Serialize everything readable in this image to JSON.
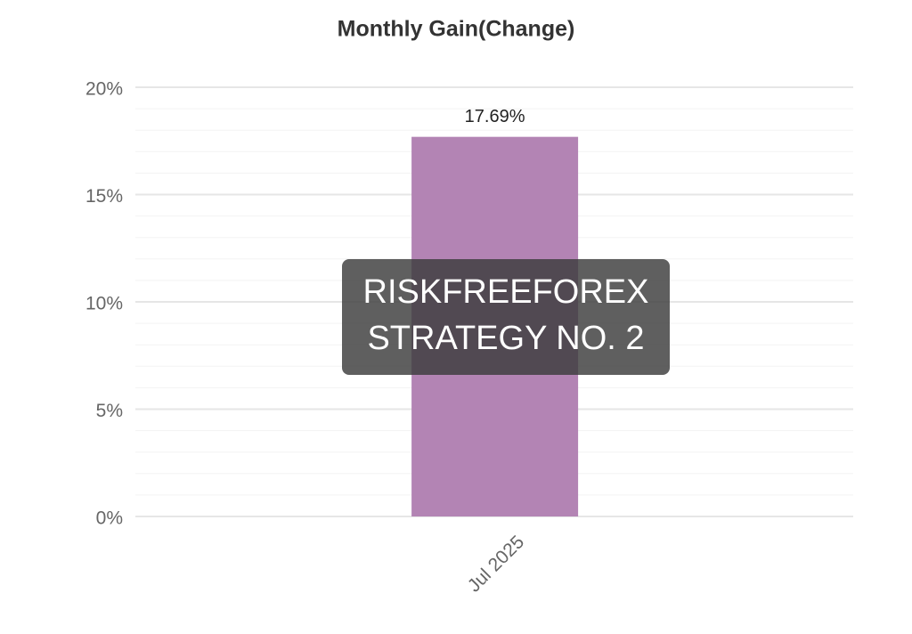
{
  "chart_data": {
    "type": "bar",
    "title": "Monthly Gain(Change)",
    "categories": [
      "Jul 2025"
    ],
    "values": [
      17.69
    ],
    "value_labels": [
      "17.69%"
    ],
    "color": "#b384b4",
    "ylim": [
      0,
      20
    ],
    "yticks": [
      {
        "value": 0,
        "label": "0%"
      },
      {
        "value": 5,
        "label": "5%"
      },
      {
        "value": 10,
        "label": "10%"
      },
      {
        "value": 15,
        "label": "15%"
      },
      {
        "value": 20,
        "label": "20%"
      }
    ],
    "grid": true,
    "minor_grid": true,
    "annotations": [
      "RISKFREEFOREX",
      "STRATEGY NO. 2"
    ]
  }
}
